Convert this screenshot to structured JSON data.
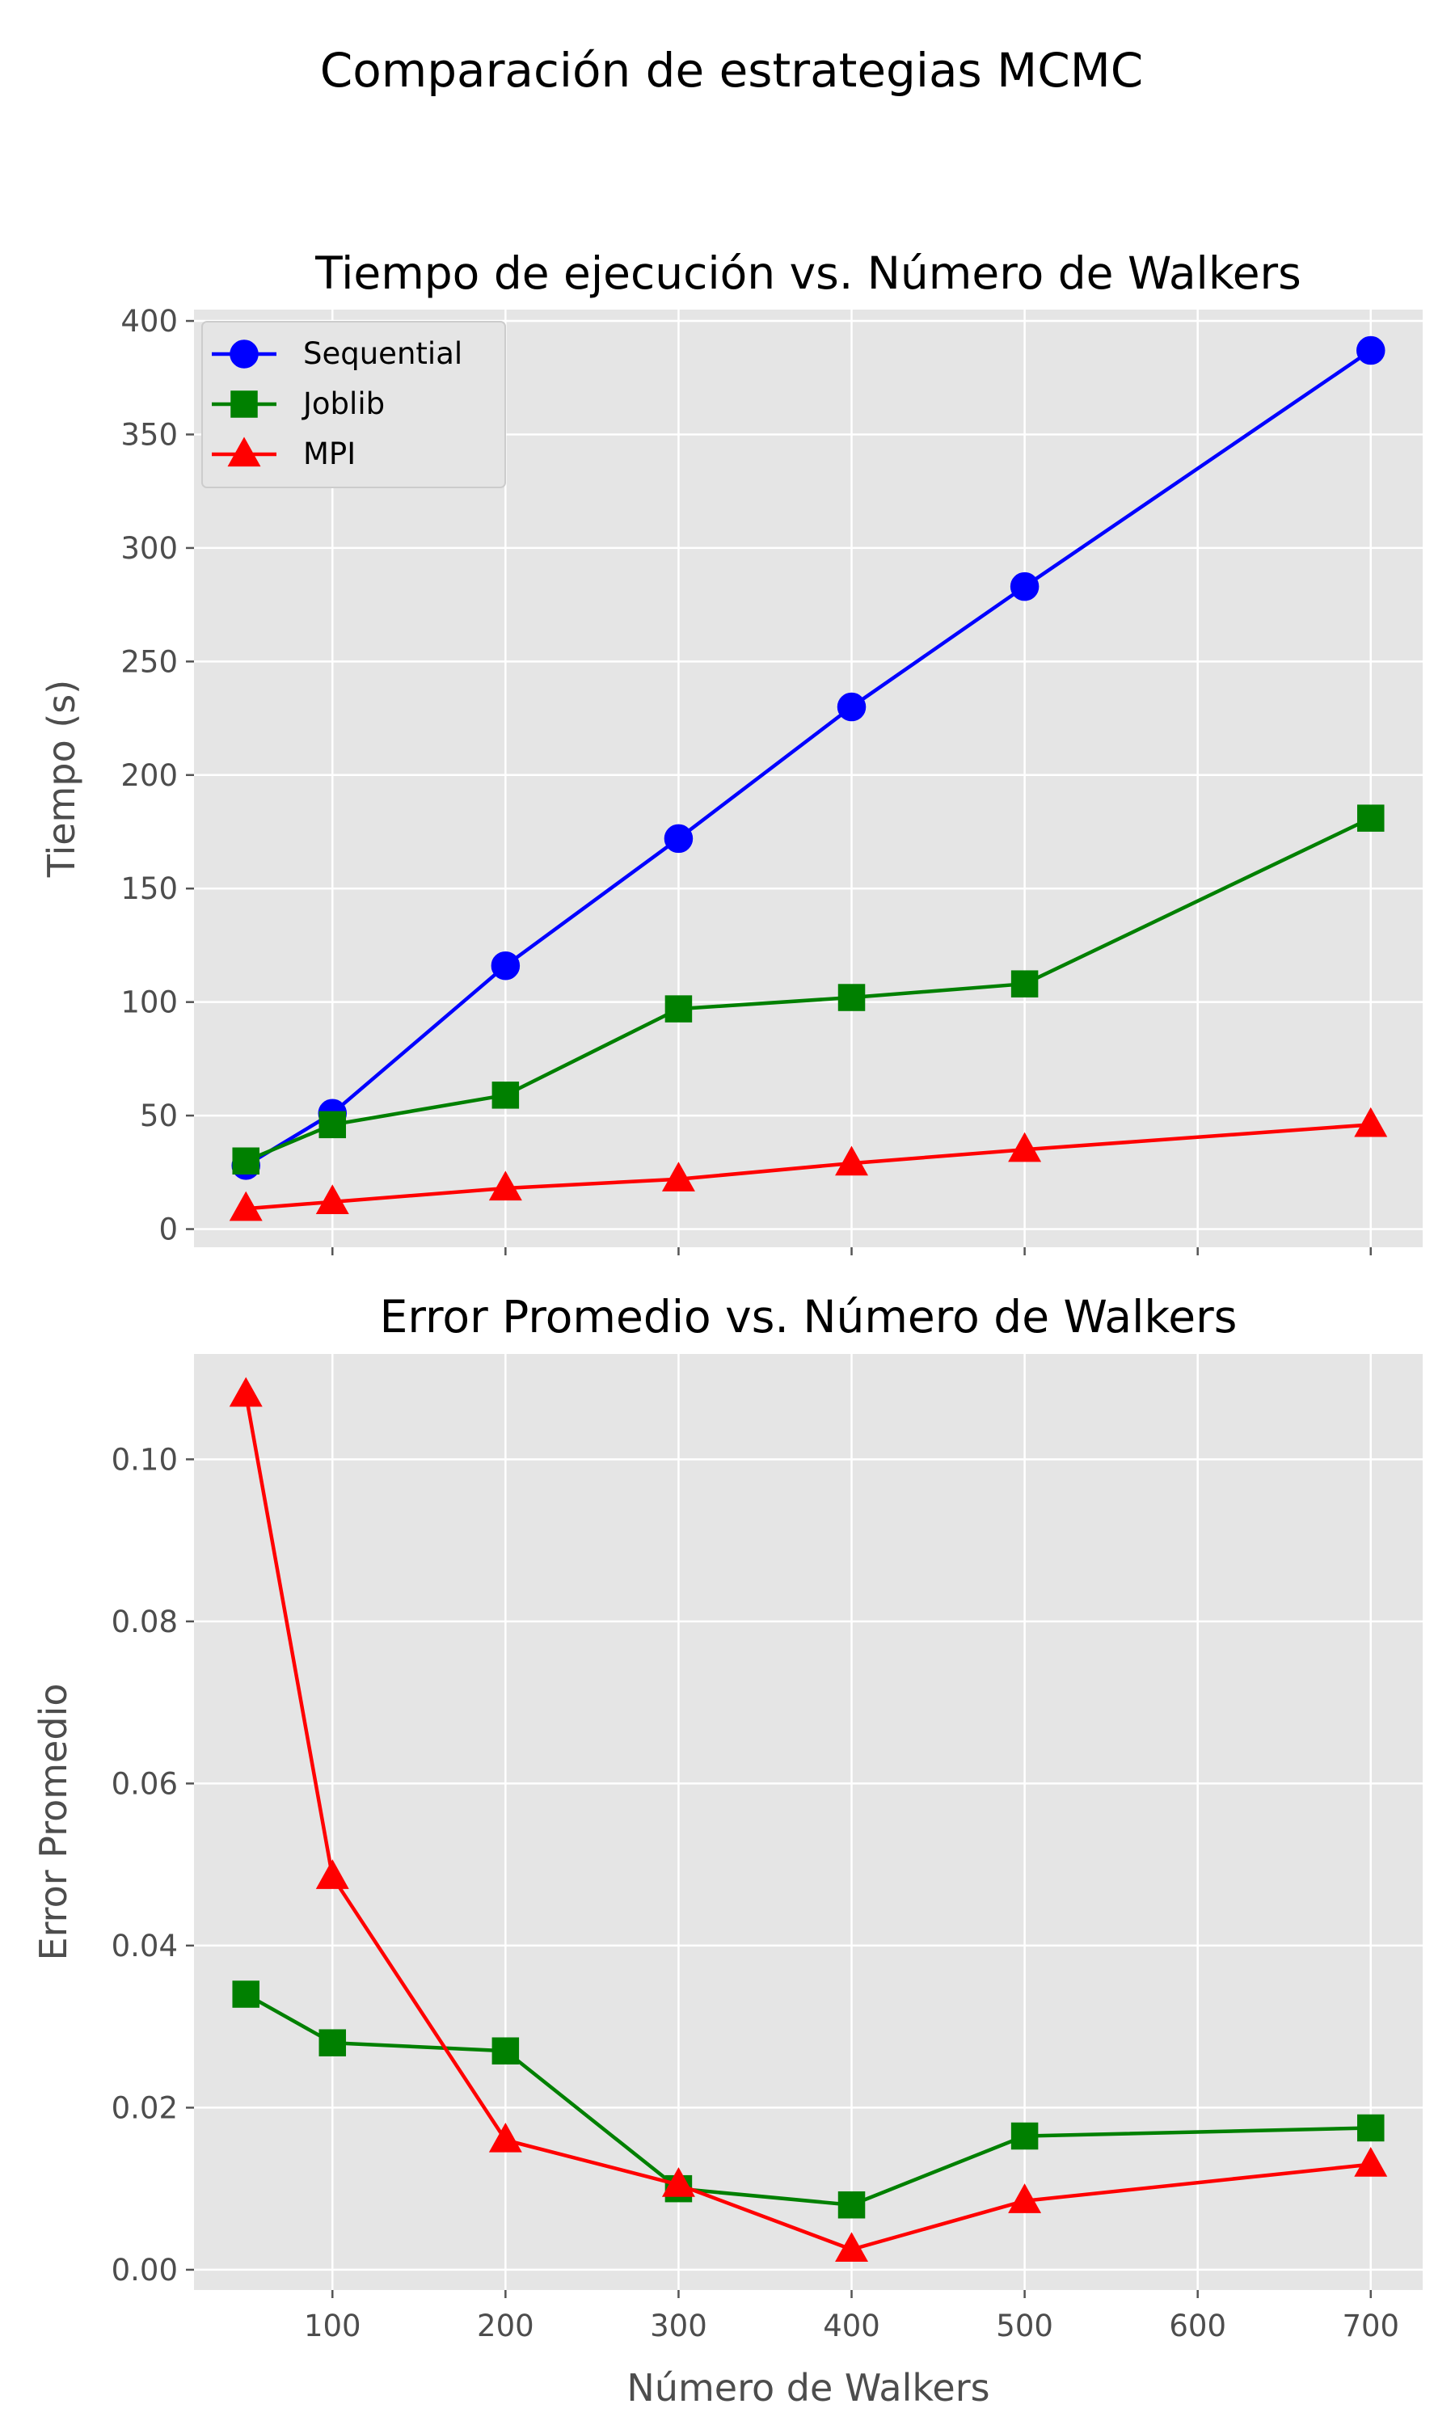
{
  "figure": {
    "title": "Comparación de estrategias MCMC"
  },
  "chart_data": [
    {
      "type": "line",
      "title": "Tiempo de ejecución vs. Número de Walkers",
      "xlabel": "",
      "ylabel": "Tiempo (s)",
      "x": [
        50,
        100,
        200,
        300,
        400,
        500,
        700
      ],
      "xlim": [
        20,
        730
      ],
      "ylim": [
        -8,
        405
      ],
      "xticks": [
        100,
        200,
        300,
        400,
        500,
        600,
        700
      ],
      "yticks": [
        0,
        50,
        100,
        150,
        200,
        250,
        300,
        350,
        400
      ],
      "show_xtick_labels": false,
      "grid": true,
      "legend": "top-left",
      "series": [
        {
          "name": "Sequential",
          "color": "#0000ff",
          "marker": "circle",
          "values": [
            28,
            51,
            116,
            172,
            230,
            283,
            387
          ]
        },
        {
          "name": "Joblib",
          "color": "#008000",
          "marker": "square",
          "values": [
            30,
            46,
            59,
            97,
            102,
            108,
            181
          ]
        },
        {
          "name": "MPI",
          "color": "#ff0000",
          "marker": "triangle",
          "values": [
            9,
            12,
            18,
            22,
            29,
            35,
            46
          ]
        }
      ]
    },
    {
      "type": "line",
      "title": "Error Promedio vs. Número de Walkers",
      "xlabel": "Número de Walkers",
      "ylabel": "Error Promedio",
      "x": [
        50,
        100,
        200,
        300,
        400,
        500,
        700
      ],
      "xlim": [
        20,
        730
      ],
      "ylim": [
        -0.0025,
        0.113
      ],
      "xticks": [
        100,
        200,
        300,
        400,
        500,
        600,
        700
      ],
      "yticks": [
        0.0,
        0.02,
        0.04,
        0.06,
        0.08,
        0.1
      ],
      "ytick_labels": [
        "0.00",
        "0.02",
        "0.04",
        "0.06",
        "0.08",
        "0.10"
      ],
      "show_xtick_labels": true,
      "grid": true,
      "series": [
        {
          "name": "Joblib",
          "color": "#008000",
          "marker": "square",
          "values": [
            0.034,
            0.028,
            0.027,
            0.01,
            0.008,
            0.0165,
            0.0175
          ]
        },
        {
          "name": "MPI",
          "color": "#ff0000",
          "marker": "triangle",
          "values": [
            0.108,
            0.0485,
            0.016,
            0.0105,
            0.0025,
            0.0085,
            0.013
          ]
        }
      ]
    }
  ]
}
